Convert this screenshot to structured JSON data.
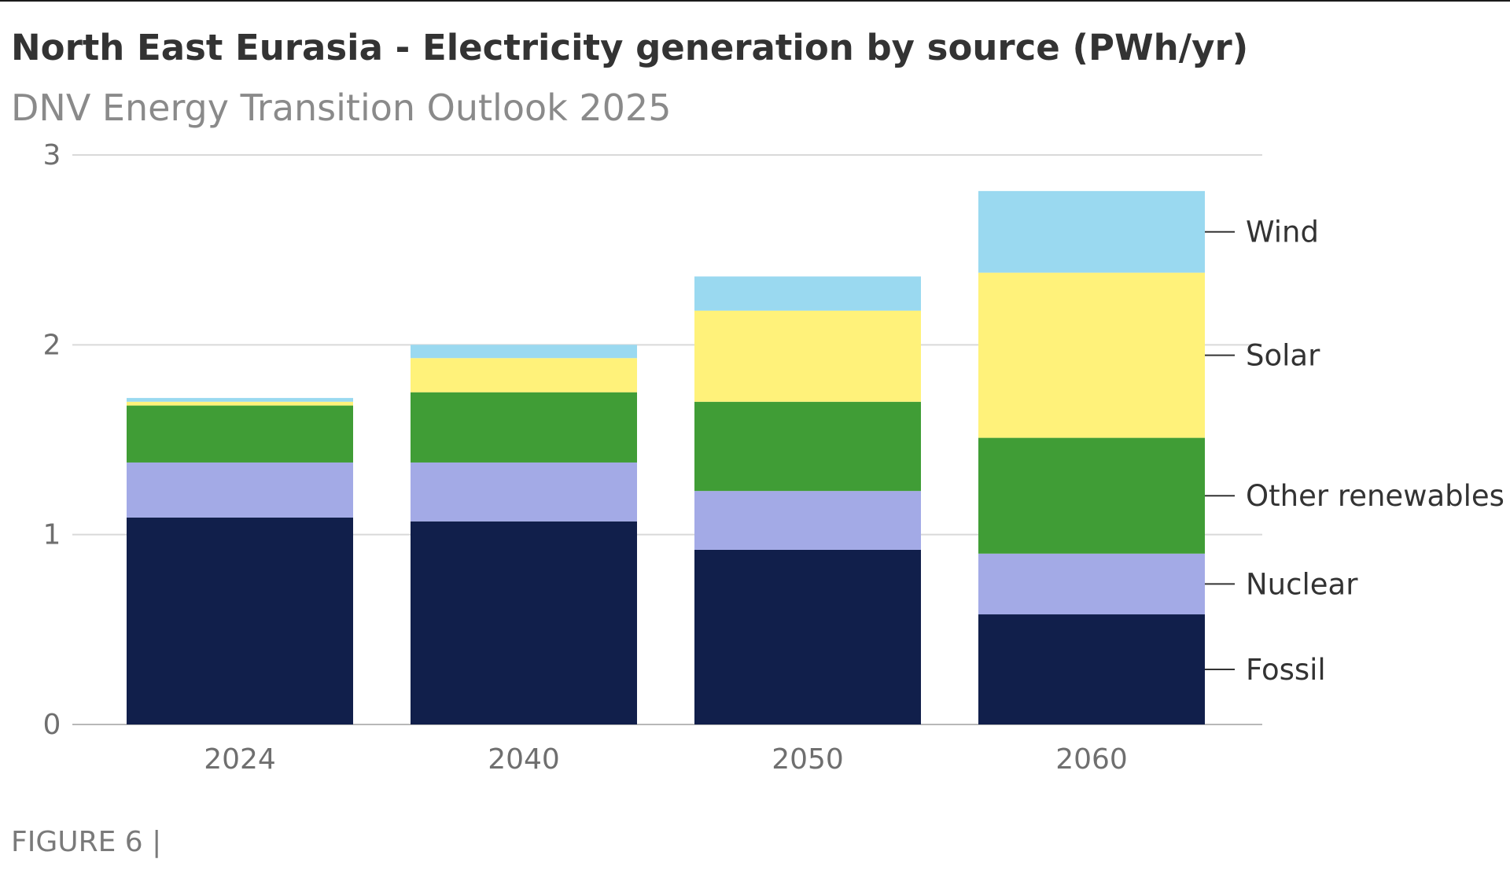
{
  "title": "North East Eurasia - Electricity generation by source (PWh/yr)",
  "subtitle": "DNV Energy Transition Outlook 2025",
  "footer": "FIGURE 6 |",
  "chart_data": {
    "type": "bar",
    "stacked": true,
    "categories": [
      "2024",
      "2040",
      "2050",
      "2060"
    ],
    "ylim": [
      0,
      3
    ],
    "yticks": [
      "0",
      "1",
      "2",
      "3"
    ],
    "grid": true,
    "legend_placement": "right, labels aligned to top bar segments",
    "series": [
      {
        "name": "Fossil",
        "color": "#111f4b",
        "values": [
          1.09,
          1.07,
          0.92,
          0.58
        ]
      },
      {
        "name": "Nuclear",
        "color": "#a3aae6",
        "values": [
          0.29,
          0.31,
          0.31,
          0.32
        ]
      },
      {
        "name": "Other renewables",
        "color": "#409d36",
        "values": [
          0.3,
          0.37,
          0.47,
          0.61
        ]
      },
      {
        "name": "Solar",
        "color": "#fff27a",
        "values": [
          0.02,
          0.18,
          0.48,
          0.87
        ]
      },
      {
        "name": "Wind",
        "color": "#9ad9f0",
        "values": [
          0.02,
          0.07,
          0.18,
          0.43
        ]
      }
    ]
  }
}
